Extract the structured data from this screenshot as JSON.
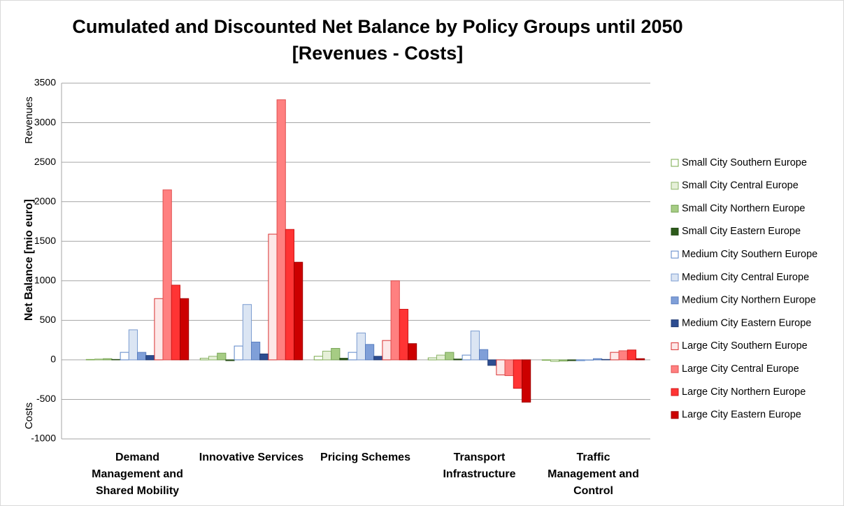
{
  "chart_data": {
    "type": "bar",
    "title": "Cumulated and Discounted Net Balance by Policy Groups until 2050",
    "subtitle": "[Revenues - Costs]",
    "ylabel": "Net Balance [mio euro]",
    "annotations": [
      "Revenues",
      "Costs"
    ],
    "categories": [
      "Demand Management and Shared Mobility",
      "Innovative Services",
      "Pricing Schemes",
      "Transport Infrastructure",
      "Traffic Management and Control"
    ],
    "ylim": [
      -1000,
      3500
    ],
    "yticks": [
      -1000,
      -500,
      0,
      500,
      1000,
      1500,
      2000,
      2500,
      3000,
      3500
    ],
    "grid": true,
    "legend": "right",
    "series": [
      {
        "name": "Small City Southern Europe",
        "color": "#ffffff",
        "edgecolor": "#77a84a",
        "values": [
          5,
          20,
          45,
          25,
          -5
        ]
      },
      {
        "name": "Small City Central Europe",
        "color": "#e6f0d8",
        "edgecolor": "#8db56a",
        "values": [
          10,
          45,
          110,
          60,
          -20
        ]
      },
      {
        "name": "Small City Northern Europe",
        "color": "#a6cc84",
        "edgecolor": "#7aa65a",
        "values": [
          15,
          85,
          145,
          95,
          -15
        ]
      },
      {
        "name": "Small City Eastern Europe",
        "color": "#2d5a1b",
        "edgecolor": "#234a14",
        "values": [
          5,
          -10,
          20,
          10,
          -10
        ]
      },
      {
        "name": "Medium City Southern Europe",
        "color": "#ffffff",
        "edgecolor": "#5b86c8",
        "values": [
          95,
          175,
          95,
          60,
          -10
        ]
      },
      {
        "name": "Medium City Central Europe",
        "color": "#dbe5f3",
        "edgecolor": "#7b9cd0",
        "values": [
          380,
          700,
          340,
          365,
          -5
        ]
      },
      {
        "name": "Medium City Northern Europe",
        "color": "#7f9fd8",
        "edgecolor": "#5b7fc0",
        "values": [
          95,
          225,
          195,
          130,
          15
        ]
      },
      {
        "name": "Medium City Eastern Europe",
        "color": "#2c4d91",
        "edgecolor": "#223c74",
        "values": [
          55,
          75,
          45,
          -70,
          5
        ]
      },
      {
        "name": "Large City Southern Europe",
        "color": "#fde8e8",
        "edgecolor": "#d93030",
        "values": [
          775,
          1590,
          245,
          -190,
          95
        ]
      },
      {
        "name": "Large City Central Europe",
        "color": "#ff8080",
        "edgecolor": "#e05050",
        "values": [
          2150,
          3290,
          1000,
          -200,
          115
        ]
      },
      {
        "name": "Large City Northern Europe",
        "color": "#ff3434",
        "edgecolor": "#d01818",
        "values": [
          945,
          1650,
          640,
          -360,
          125
        ]
      },
      {
        "name": "Large City Eastern Europe",
        "color": "#cc0000",
        "edgecolor": "#a00000",
        "values": [
          775,
          1235,
          205,
          -535,
          15
        ]
      }
    ]
  }
}
